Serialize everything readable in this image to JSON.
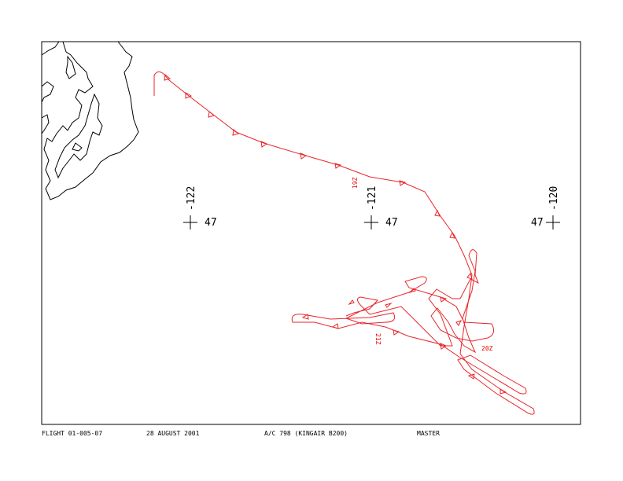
{
  "grid_marks": [
    {
      "lon": "-122",
      "lat": "47"
    },
    {
      "lon": "-121",
      "lat": "47"
    },
    {
      "lon": "-120",
      "lat": "47"
    }
  ],
  "time_labels": [
    "19Z",
    "21Z",
    "20Z"
  ],
  "footer": [
    "FLIGHT 01-005-07",
    "28 AUGUST 2001",
    "A/C 798 (KINGAIR B200)",
    "MASTER"
  ]
}
